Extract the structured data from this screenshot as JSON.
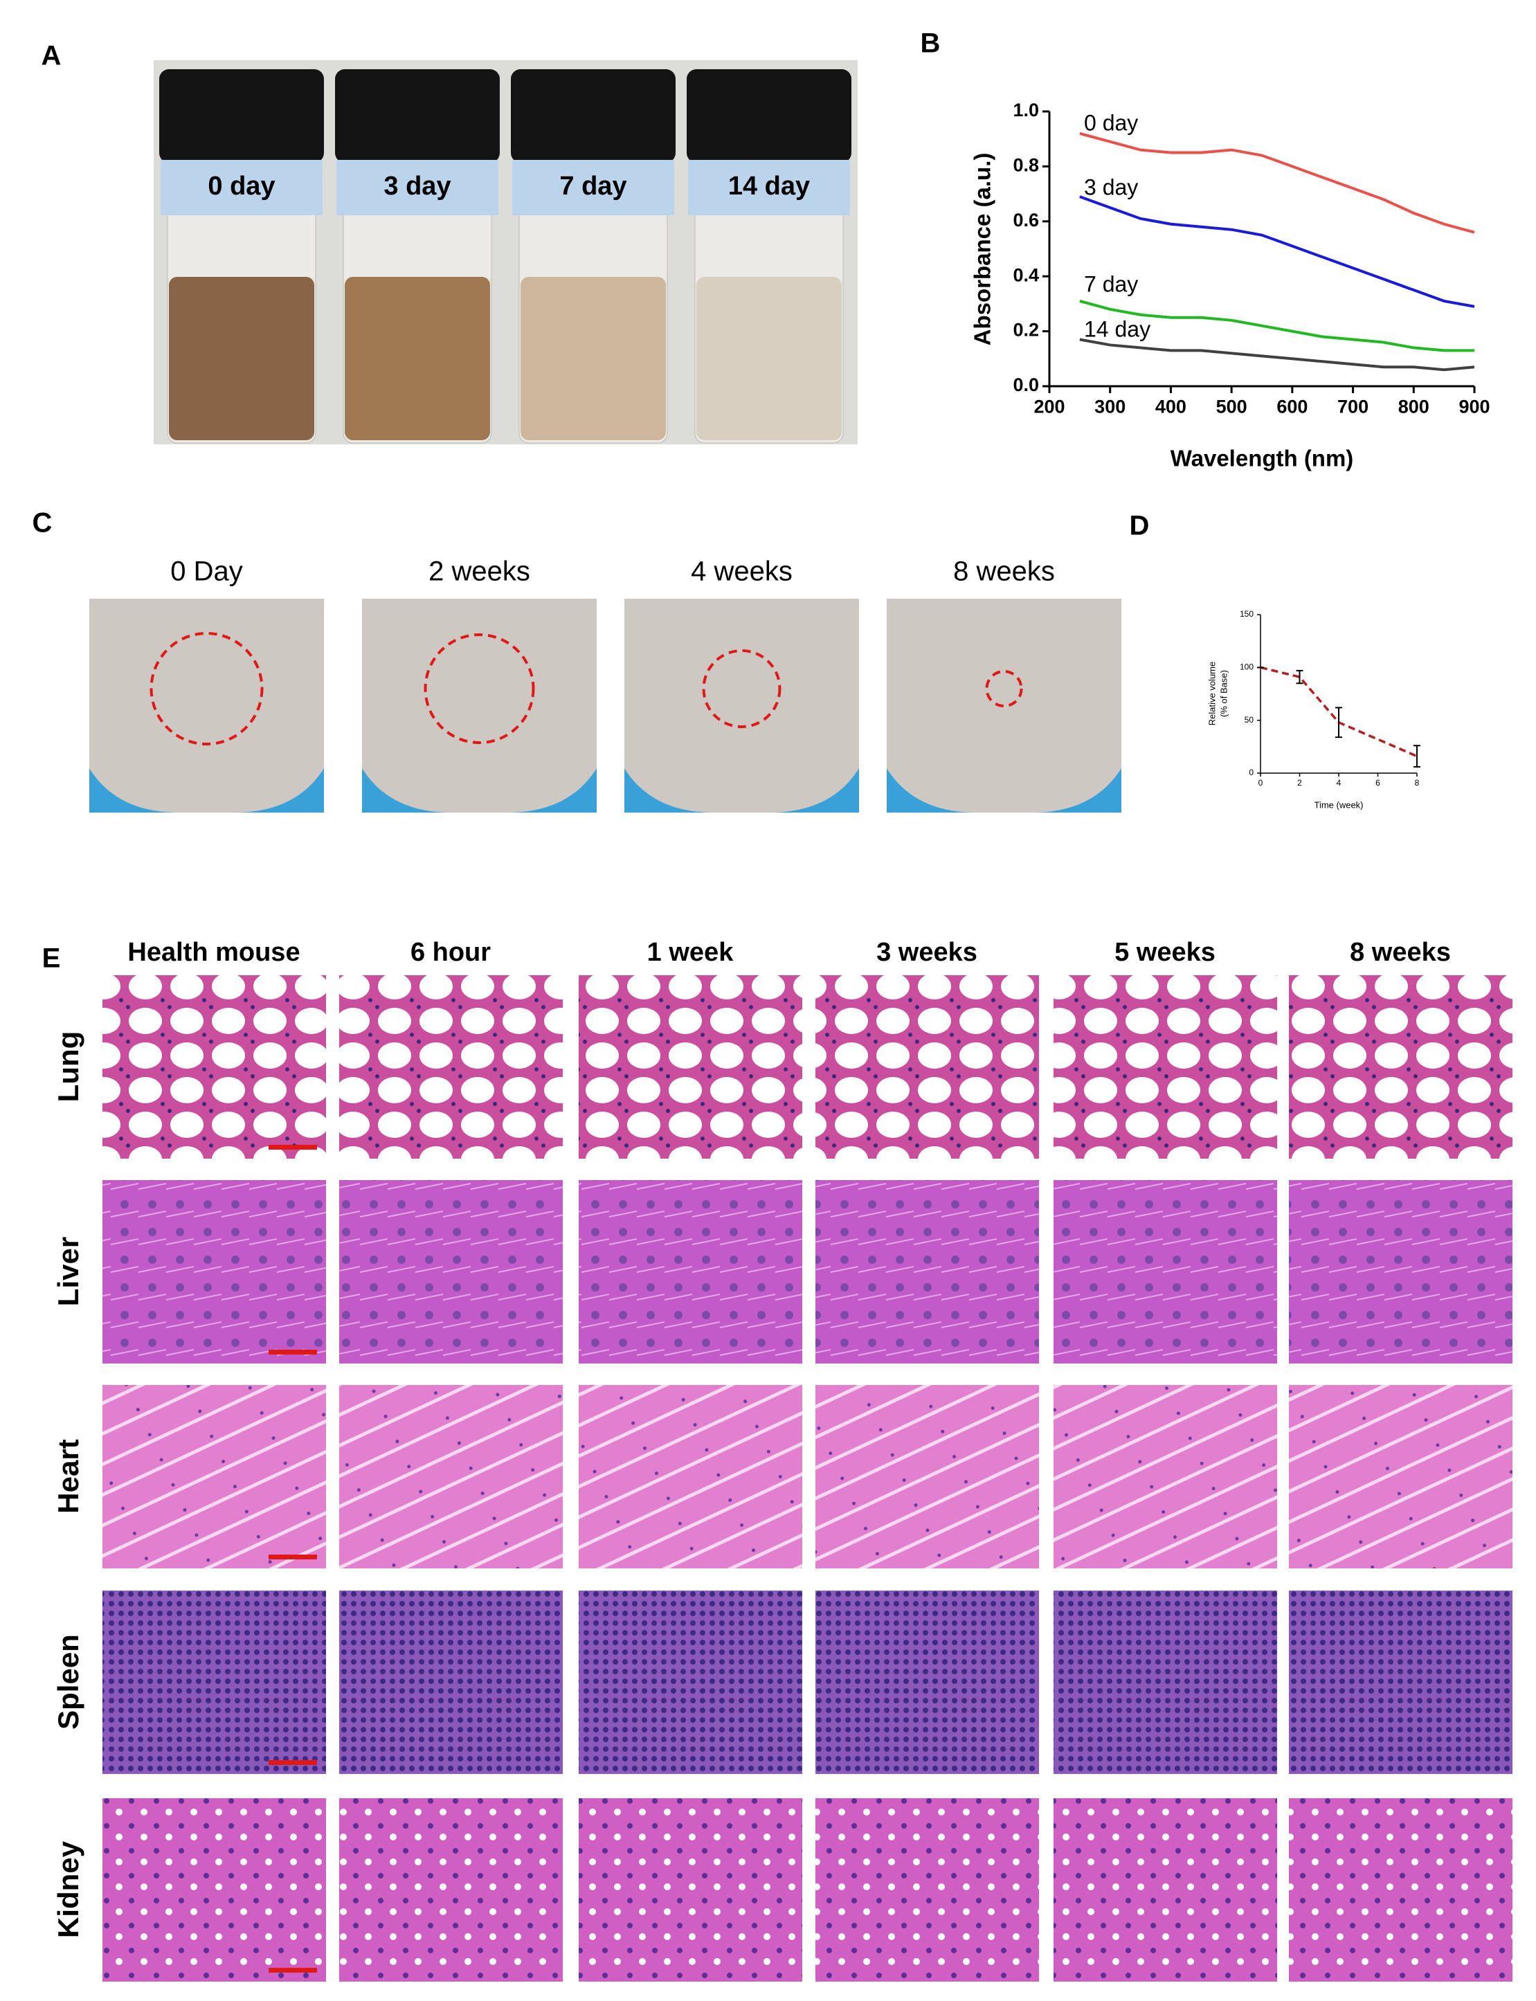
{
  "panel_labels": [
    "A",
    "B",
    "C",
    "D",
    "E"
  ],
  "panel_a": {
    "vial_labels": [
      "0 day",
      "3 day",
      "7 day",
      "14 day"
    ]
  },
  "panel_c": {
    "labels": [
      "0 Day",
      "2 weeks",
      "4 weeks",
      "8 weeks"
    ]
  },
  "panel_e": {
    "columns": [
      "Health mouse",
      "6 hour",
      "1 week",
      "3 weeks",
      "5 weeks",
      "8 weeks"
    ],
    "rows": [
      "Lung",
      "Liver",
      "Heart",
      "Spleen",
      "Kidney"
    ]
  },
  "chart_data": [
    {
      "type": "line",
      "x_label": "Wavelength (nm)",
      "y_label": "Absorbance (a.u.)",
      "x": [
        250,
        300,
        350,
        400,
        450,
        500,
        550,
        600,
        650,
        700,
        750,
        800,
        850,
        900
      ],
      "series": [
        {
          "name": "0 day",
          "color": "#e8524a",
          "values": [
            0.92,
            0.89,
            0.86,
            0.85,
            0.85,
            0.86,
            0.84,
            0.8,
            0.76,
            0.72,
            0.68,
            0.63,
            0.59,
            0.56
          ]
        },
        {
          "name": "3 day",
          "color": "#1a1adb",
          "values": [
            0.69,
            0.65,
            0.61,
            0.59,
            0.58,
            0.57,
            0.55,
            0.51,
            0.47,
            0.43,
            0.39,
            0.35,
            0.31,
            0.29
          ]
        },
        {
          "name": "7 day",
          "color": "#22b822",
          "values": [
            0.31,
            0.28,
            0.26,
            0.25,
            0.25,
            0.24,
            0.22,
            0.2,
            0.18,
            0.17,
            0.16,
            0.14,
            0.13,
            0.13
          ]
        },
        {
          "name": "14 day",
          "color": "#404040",
          "values": [
            0.17,
            0.15,
            0.14,
            0.13,
            0.13,
            0.12,
            0.11,
            0.1,
            0.09,
            0.08,
            0.07,
            0.07,
            0.06,
            0.07
          ]
        }
      ],
      "xlim": [
        200,
        900
      ],
      "xticks": [
        200,
        300,
        400,
        500,
        600,
        700,
        800,
        900
      ],
      "ylim": [
        0,
        1
      ],
      "yticks": [
        {
          "value": 0,
          "label": "0.0"
        },
        0.2,
        0.4,
        0.6,
        0.8,
        {
          "value": 1,
          "label": "1.0"
        }
      ]
    },
    {
      "type": "errorline",
      "x_label": "Time (week)",
      "y_label": [
        "Relative volume",
        "(% of Base)"
      ],
      "x": [
        0,
        2,
        4,
        8
      ],
      "values": [
        100,
        91,
        48,
        16
      ],
      "errors": [
        0,
        6,
        14,
        10
      ],
      "color": "#b22222",
      "xlim": [
        0,
        8
      ],
      "xticks": [
        0,
        2,
        4,
        6,
        8
      ],
      "ylim": [
        0,
        150
      ],
      "yticks": [
        0,
        50,
        100,
        150
      ]
    }
  ]
}
